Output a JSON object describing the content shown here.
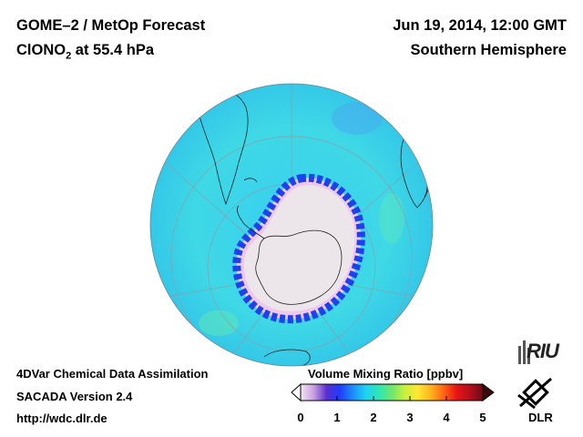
{
  "header": {
    "title": "GOME–2 / MetOp Forecast",
    "species": "ClONO",
    "species_sub": "2",
    "level": " at 55.4 hPa",
    "date": "Jun 19, 2014, 12:00 GMT",
    "hemisphere": "Southern Hemisphere"
  },
  "footer": {
    "assimilation": "4DVar Chemical Data Assimilation",
    "version": "SACADA Version 2.4",
    "url": "http://wdc.dlr.de"
  },
  "colorbar": {
    "title": "Volume Mixing Ratio [ppbv]",
    "ticks": [
      "0",
      "1",
      "2",
      "3",
      "4",
      "5"
    ],
    "range": [
      0,
      5
    ],
    "colors": [
      "#f5e6f5",
      "#c99fe0",
      "#5a2ecf",
      "#1f3cff",
      "#1e8cff",
      "#1ed2f0",
      "#2ee6b4",
      "#6ee66e",
      "#c8f03c",
      "#ffe632",
      "#ffb41e",
      "#ff6414",
      "#e61414",
      "#b40f1e",
      "#6e0a14"
    ]
  },
  "map": {
    "ocean_color": "#3ed6ea",
    "core_color": "#ece6ea",
    "ring_color": "#2040f0"
  },
  "logos": {
    "riu": "RIU",
    "dlr": "DLR"
  }
}
